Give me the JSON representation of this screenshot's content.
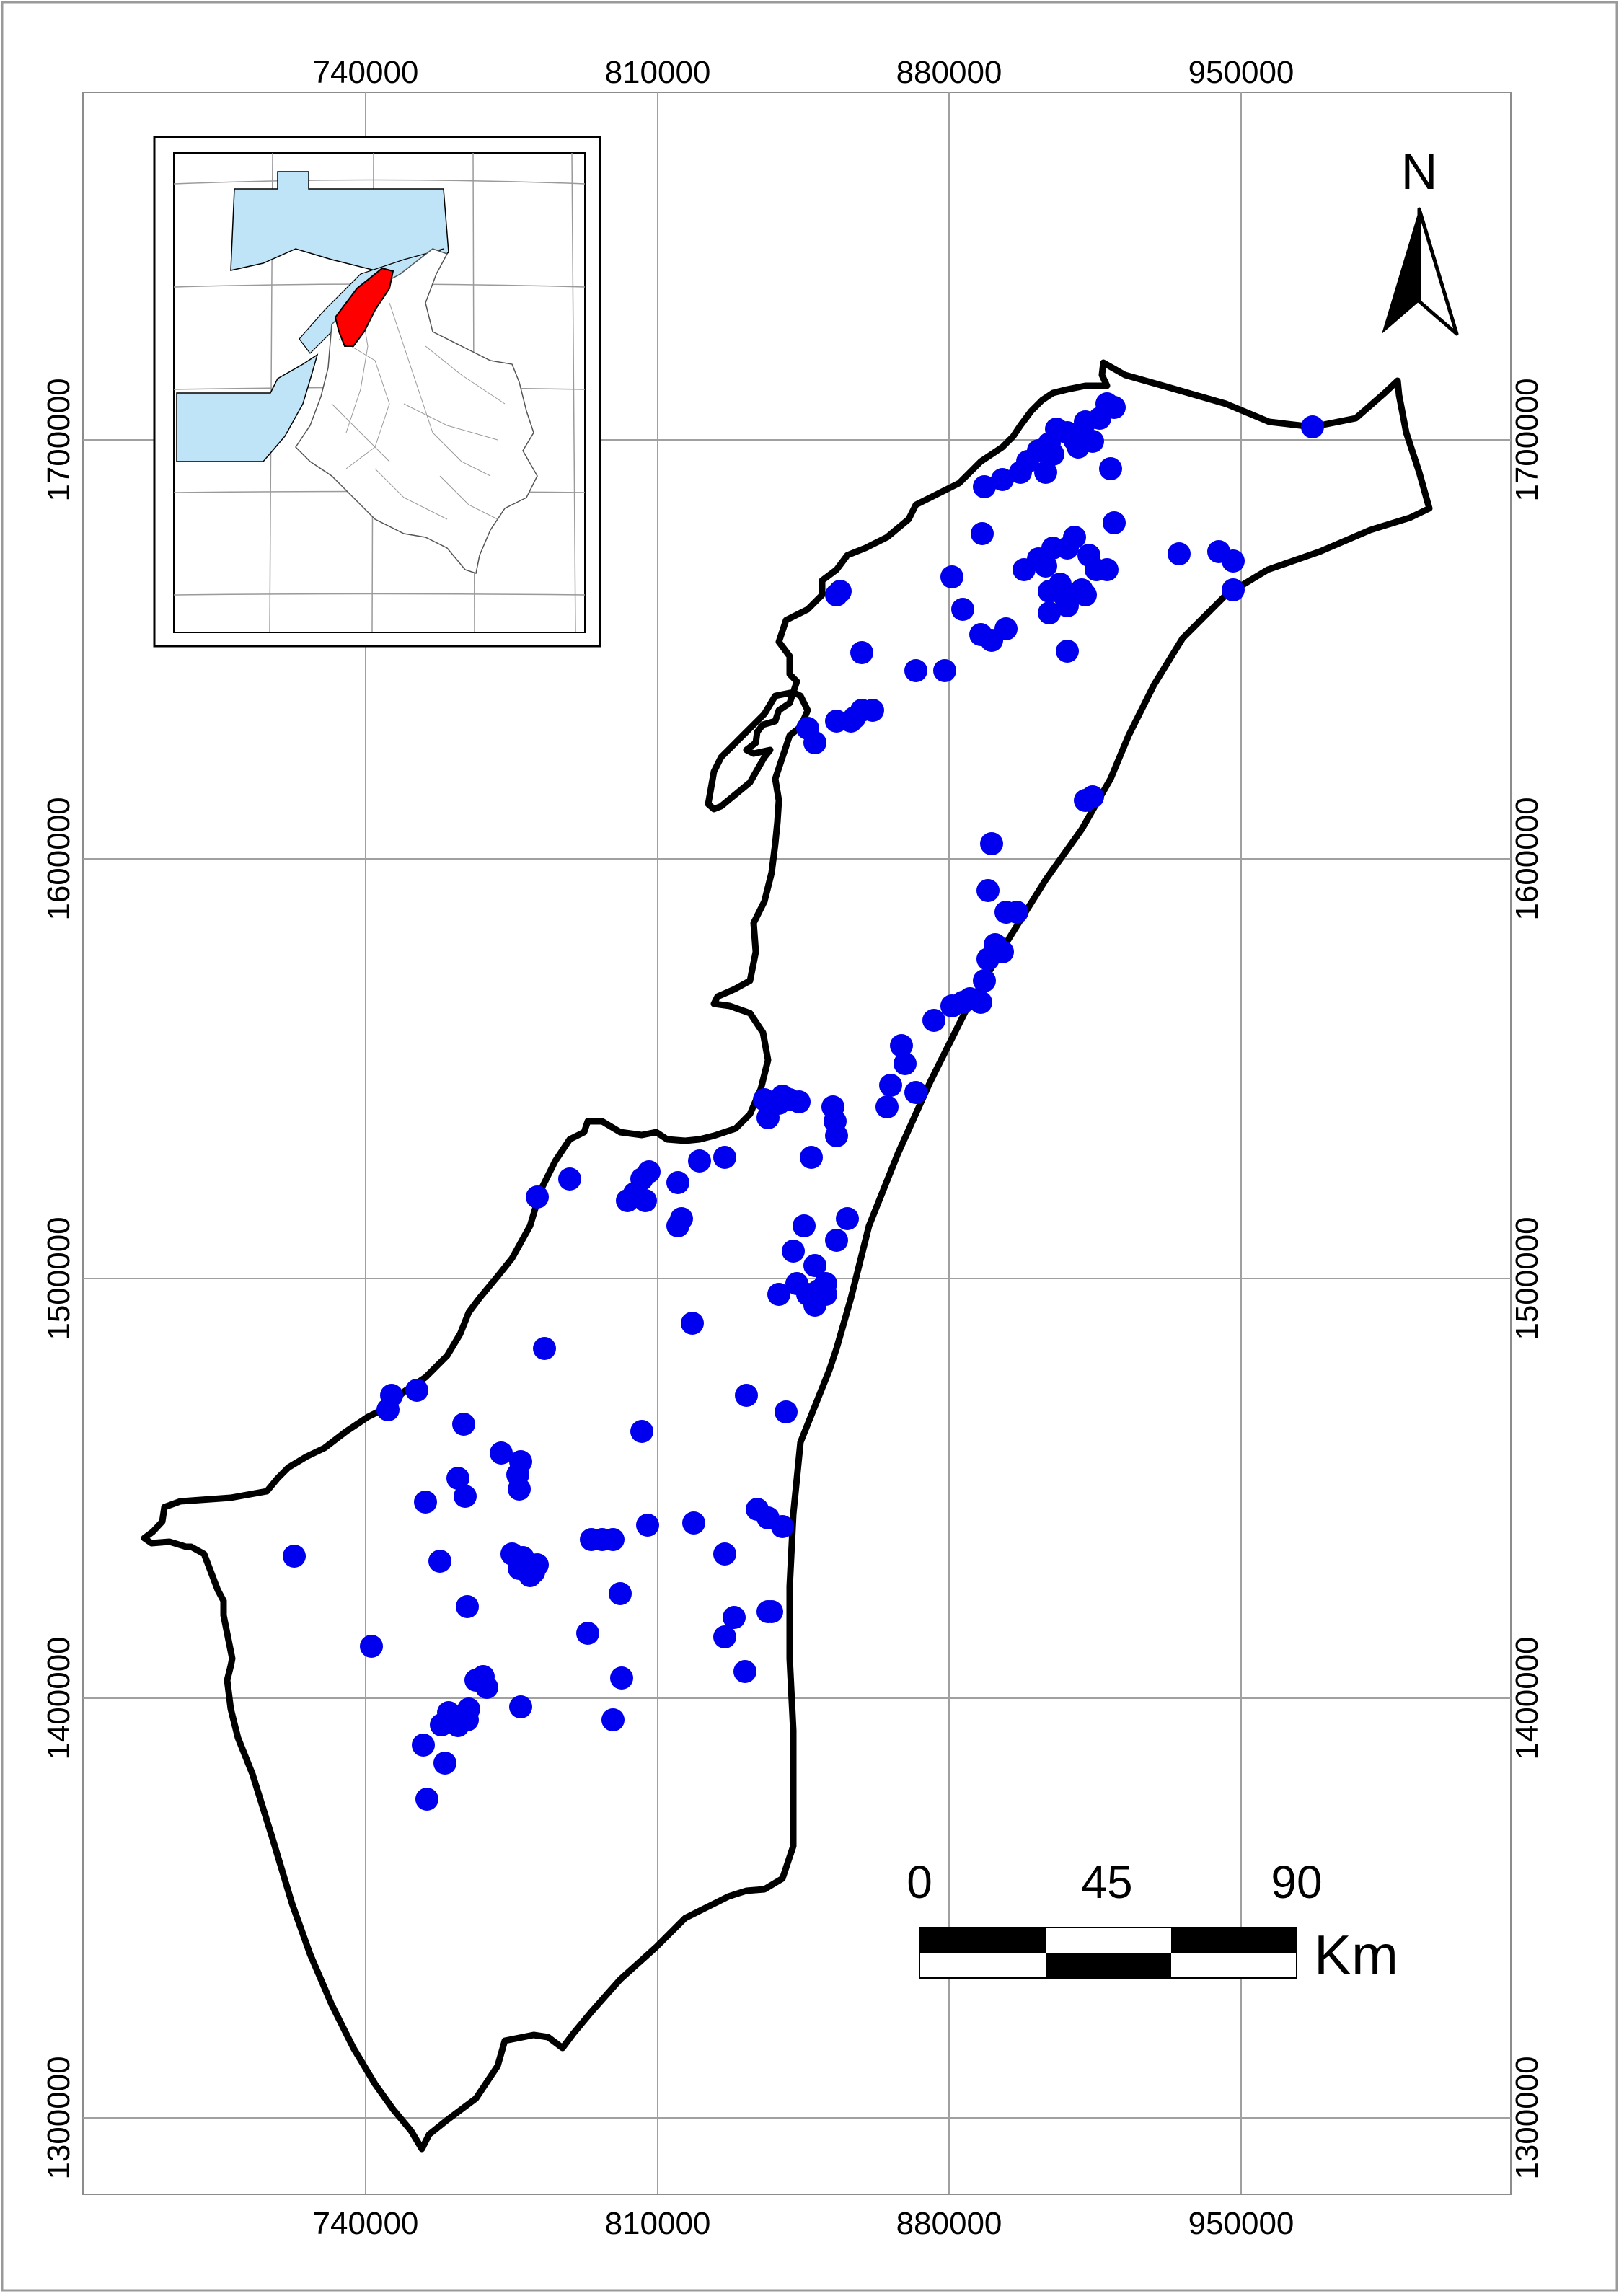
{
  "map": {
    "x_ticks": [
      "740000",
      "810000",
      "880000",
      "950000"
    ],
    "y_ticks": [
      "1700000",
      "1600000",
      "1500000",
      "1400000",
      "1300000"
    ],
    "north_label": "N",
    "scale_bar": {
      "labels": [
        "0",
        "45",
        "90"
      ],
      "unit": "Km"
    },
    "colors": {
      "points": "#0000ee",
      "outline": "#000000",
      "inset_water": "#bfe4f7",
      "inset_highlight": "#ff0000",
      "grid": "#a0a0a0"
    }
  }
}
